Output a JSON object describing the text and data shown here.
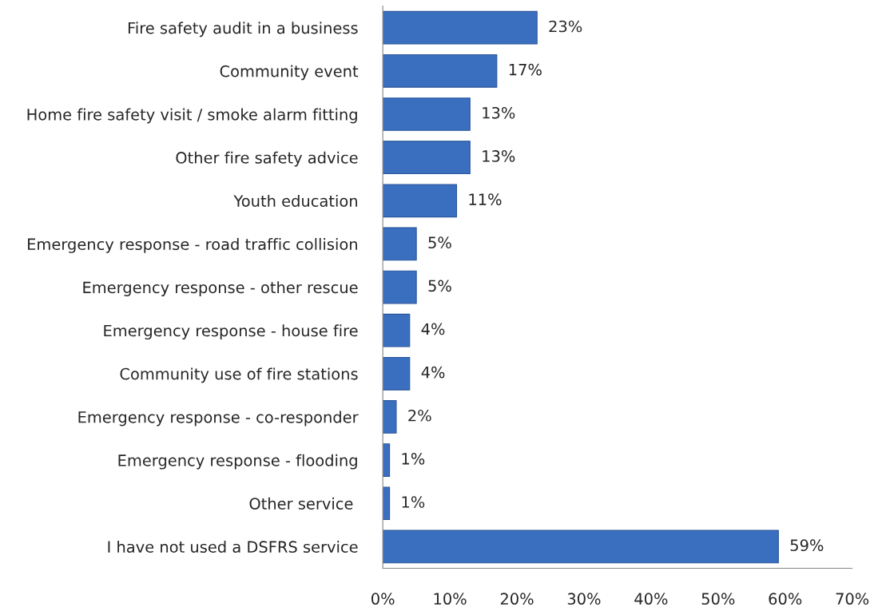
{
  "chart_data": {
    "type": "bar",
    "orientation": "horizontal",
    "categories": [
      "Fire safety audit in a business",
      "Community event",
      "Home fire safety visit / smoke alarm fitting",
      "Other fire safety advice",
      "Youth education",
      "Emergency response - road traffic collision",
      "Emergency response - other rescue",
      "Emergency response - house fire",
      "Community use of fire stations",
      "Emergency response - co-responder",
      "Emergency response - flooding",
      "Other service ",
      "I have not used a DSFRS service"
    ],
    "values": [
      23,
      17,
      13,
      13,
      11,
      5,
      5,
      4,
      4,
      2,
      1,
      1,
      59
    ],
    "value_labels": [
      "23%",
      "17%",
      "13%",
      "13%",
      "11%",
      "5%",
      "5%",
      "4%",
      "4%",
      "2%",
      "1%",
      "1%",
      "59%"
    ],
    "color": "#3a6fc0",
    "xlim": [
      0,
      70
    ],
    "xticks": [
      {
        "value": 0,
        "label": "0%"
      },
      {
        "value": 10,
        "label": "10%"
      },
      {
        "value": 20,
        "label": "20%"
      },
      {
        "value": 30,
        "label": "30%"
      },
      {
        "value": 40,
        "label": "40%"
      },
      {
        "value": 50,
        "label": "50%"
      },
      {
        "value": 60,
        "label": "60%"
      },
      {
        "value": 70,
        "label": "70%"
      }
    ],
    "grid": false,
    "legend": false
  }
}
